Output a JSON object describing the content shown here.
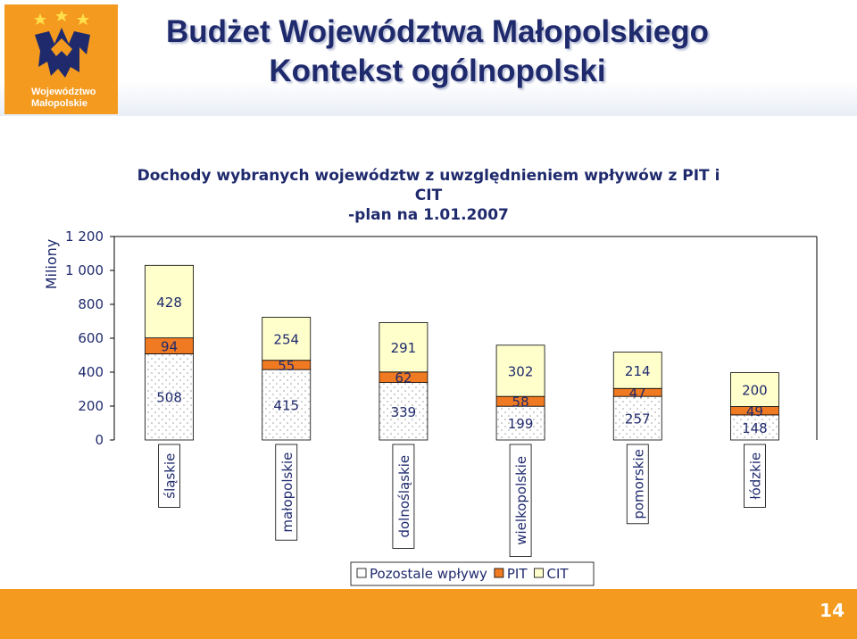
{
  "header": {
    "logo_line1": "Województwo",
    "logo_line2": "Małopolskie",
    "title_line1": "Budżet Województwa Małopolskiego",
    "title_line2": "Kontekst ogólnopolski"
  },
  "footer": {
    "page_number": "14"
  },
  "colors": {
    "accent": "#F39A1F",
    "title": "#1F2A6D",
    "pit": "#F07A21",
    "cit": "#FFFFCC"
  },
  "chart_data": {
    "type": "bar",
    "stacked": true,
    "title_line1": "Dochody wybranych województw z uwzględnieniem wpływów z PIT i CIT",
    "title_line2": "-plan na 1.01.2007",
    "ylabel": "Miliony",
    "xlabel": "",
    "ylim": [
      0,
      1200
    ],
    "yticks": [
      0,
      200,
      400,
      600,
      800,
      1000,
      1200
    ],
    "ytick_labels": [
      "0",
      "200",
      "400",
      "600",
      "800",
      "1 000",
      "1 200"
    ],
    "categories": [
      "śląskie",
      "małopolskie",
      "dolnośląskie",
      "wielkopolskie",
      "pomorskie",
      "łódzkie"
    ],
    "series": [
      {
        "name": "Pozostałe wpływy",
        "legend_label": "Pozostale wpływy",
        "color": "#FFFFFF",
        "pattern": "dots",
        "values": [
          508,
          415,
          339,
          199,
          257,
          148
        ]
      },
      {
        "name": "PIT",
        "legend_label": "PIT",
        "color": "#F07A21",
        "values": [
          94,
          55,
          62,
          58,
          47,
          49
        ]
      },
      {
        "name": "CIT",
        "legend_label": "CIT",
        "color": "#FFFFCC",
        "values": [
          428,
          254,
          291,
          302,
          214,
          200
        ]
      }
    ],
    "legend_position": "bottom",
    "grid": false
  }
}
